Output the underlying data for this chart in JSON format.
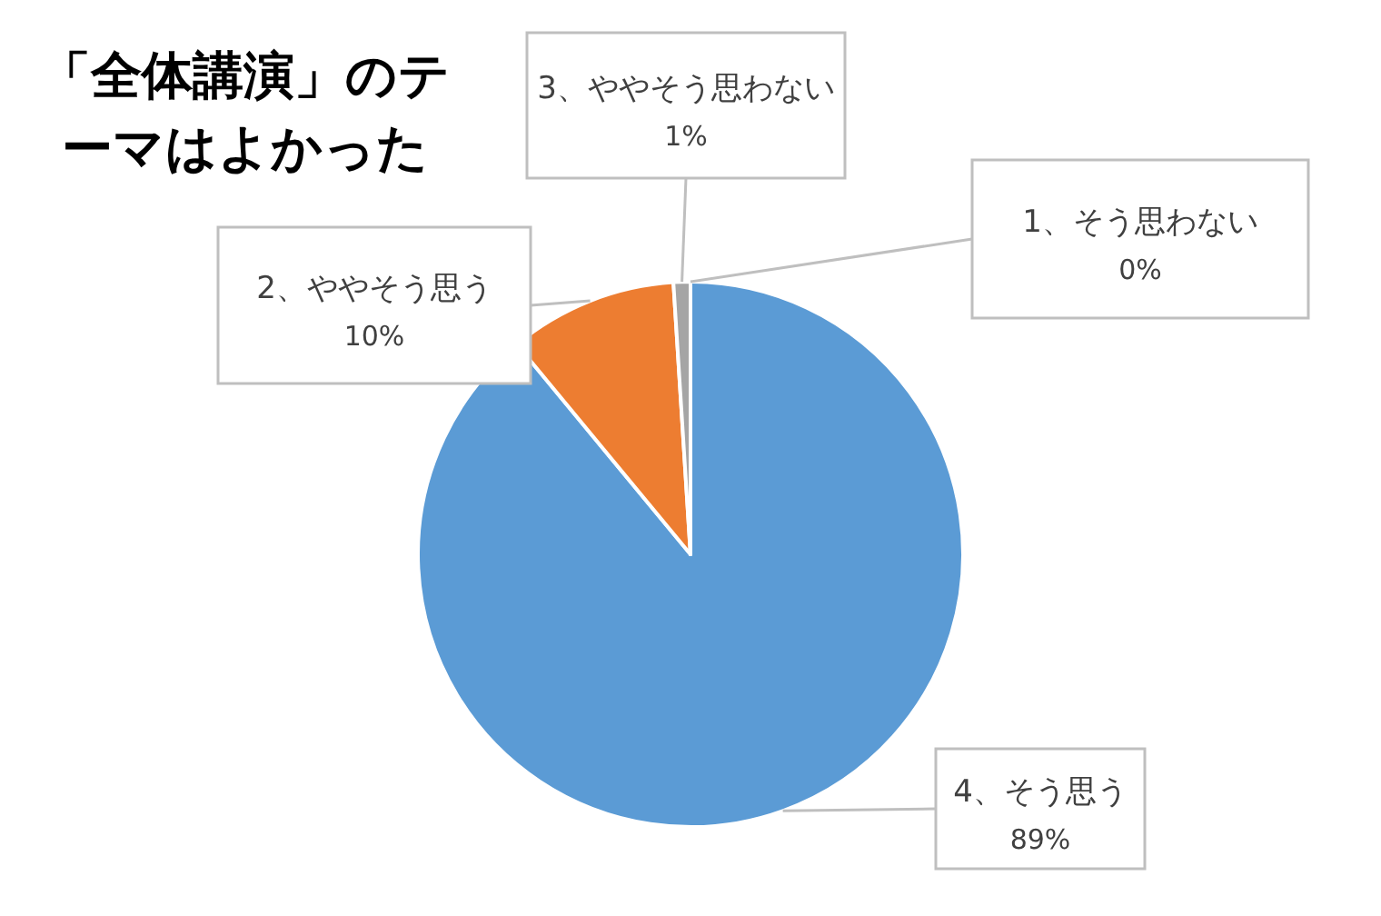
{
  "chart_data": {
    "type": "pie",
    "title": "「全体講演」のテーマはよかった",
    "categories": [
      "4、そう思う",
      "2、ややそう思う",
      "3、ややそう思わない",
      "1、そう思わない"
    ],
    "values": [
      89,
      10,
      1,
      0
    ],
    "colors": [
      "#5b9bd5",
      "#ed7d31",
      "#a5a5a5",
      "#ffc000"
    ],
    "value_labels": [
      "89%",
      "10%",
      "1%",
      "0%"
    ],
    "legend": false
  }
}
